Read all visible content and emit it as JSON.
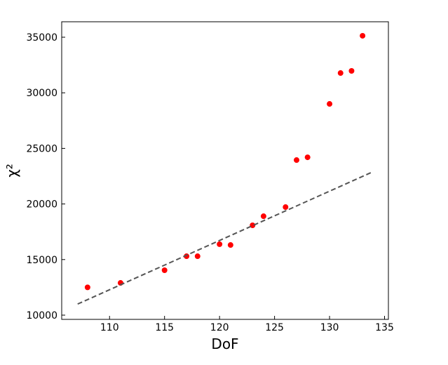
{
  "chart_data": {
    "type": "scatter",
    "x_label": "DoF",
    "y_label": "χ²",
    "xlim": [
      105.65,
      135.35
    ],
    "ylim": [
      9620,
      36390
    ],
    "xticks": [
      110,
      115,
      120,
      125,
      130,
      135
    ],
    "yticks": [
      10000,
      15000,
      20000,
      25000,
      30000,
      35000
    ],
    "tick_direction": "in",
    "series": [
      {
        "type": "scatter",
        "color": "#ff0000",
        "x": [
          108,
          111,
          115,
          117,
          118,
          120,
          121,
          123,
          124,
          126,
          127,
          128,
          130,
          131,
          132,
          133
        ],
        "values": [
          12500,
          12900,
          14040,
          15300,
          15300,
          16380,
          16310,
          18080,
          18900,
          19720,
          23950,
          24200,
          29000,
          31780,
          31970,
          35130
        ]
      },
      {
        "type": "line",
        "color": "#555555",
        "dashed": true,
        "x": [
          107.1,
          133.9
        ],
        "values": [
          11000,
          22880
        ]
      }
    ]
  }
}
